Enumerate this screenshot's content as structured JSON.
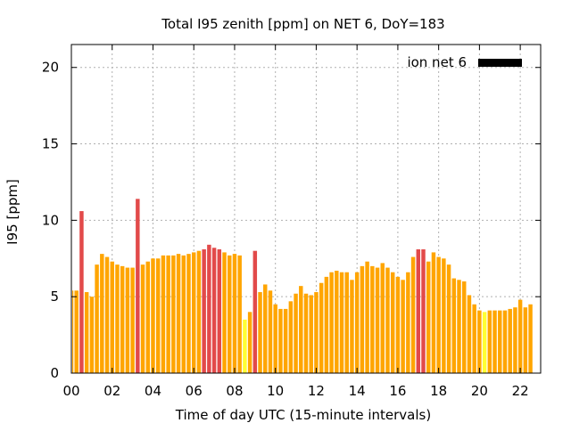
{
  "chart_data": {
    "type": "bar",
    "title": "Total I95 zenith [ppm] on NET 6, DoY=183",
    "xlabel": "Time of day UTC (15-minute intervals)",
    "ylabel": "I95 [ppm]",
    "xlim": [
      0,
      23
    ],
    "ylim": [
      0,
      21.5
    ],
    "x_ticks": [
      "00",
      "02",
      "04",
      "06",
      "08",
      "10",
      "12",
      "14",
      "16",
      "18",
      "20",
      "22"
    ],
    "y_ticks": [
      "0",
      "5",
      "10",
      "15",
      "20"
    ],
    "grid": true,
    "legend_position": "top-right",
    "series": [
      {
        "name": "ion net 6",
        "color": "#000000",
        "x_start": 0,
        "x_step": 0.25,
        "values": [
          5.4,
          5.4,
          10.6,
          5.3,
          5.0,
          7.1,
          7.8,
          7.6,
          7.3,
          7.1,
          7.0,
          6.9,
          6.9,
          11.4,
          7.1,
          7.3,
          7.5,
          7.5,
          7.7,
          7.7,
          7.7,
          7.8,
          7.7,
          7.8,
          7.9,
          8.0,
          8.1,
          8.4,
          8.2,
          8.1,
          7.9,
          7.7,
          7.8,
          7.7,
          3.5,
          4.0,
          8.0,
          5.3,
          5.8,
          5.4,
          4.5,
          4.2,
          4.2,
          4.7,
          5.2,
          5.7,
          5.2,
          5.1,
          5.3,
          5.9,
          6.3,
          6.6,
          6.7,
          6.6,
          6.6,
          6.1,
          6.6,
          7.0,
          7.3,
          7.0,
          6.9,
          7.2,
          6.9,
          6.6,
          6.3,
          6.1,
          6.6,
          7.6,
          8.1,
          8.1,
          7.3,
          7.9,
          7.6,
          7.5,
          7.1,
          6.2,
          6.1,
          6.0,
          5.1,
          4.5,
          4.1,
          4.0,
          4.1,
          4.1,
          4.1,
          4.1,
          4.2,
          4.3,
          4.8,
          4.3,
          4.5
        ],
        "colors": [
          "#ffa500",
          "#ffa500",
          "#e24a4a",
          "#ffa500",
          "#ffa500",
          "#ffa500",
          "#ffa500",
          "#ffa500",
          "#ffa500",
          "#ffa500",
          "#ffa500",
          "#ffa500",
          "#ffa500",
          "#e24a4a",
          "#ffa500",
          "#ffa500",
          "#ffa500",
          "#ffa500",
          "#ffa500",
          "#ffa500",
          "#ffa500",
          "#ffa500",
          "#ffa500",
          "#ffa500",
          "#ffa500",
          "#ffa500",
          "#e24a4a",
          "#e24a4a",
          "#e24a4a",
          "#e24a4a",
          "#ffa500",
          "#ffa500",
          "#ffa500",
          "#ffa500",
          "#ffff33",
          "#ffa500",
          "#e24a4a",
          "#ffa500",
          "#ffa500",
          "#ffa500",
          "#ffa500",
          "#ffa500",
          "#ffa500",
          "#ffa500",
          "#ffa500",
          "#ffa500",
          "#ffa500",
          "#ffa500",
          "#ffa500",
          "#ffa500",
          "#ffa500",
          "#ffa500",
          "#ffa500",
          "#ffa500",
          "#ffa500",
          "#ffa500",
          "#ffa500",
          "#ffa500",
          "#ffa500",
          "#ffa500",
          "#ffa500",
          "#ffa500",
          "#ffa500",
          "#ffa500",
          "#ffa500",
          "#ffa500",
          "#ffa500",
          "#ffa500",
          "#e24a4a",
          "#e24a4a",
          "#ffa500",
          "#ffa500",
          "#ffa500",
          "#ffa500",
          "#ffa500",
          "#ffa500",
          "#ffa500",
          "#ffa500",
          "#ffa500",
          "#ffa500",
          "#ffa500",
          "#ffff33",
          "#ffa500",
          "#ffa500",
          "#ffa500",
          "#ffa500",
          "#ffa500",
          "#ffa500",
          "#ffa500",
          "#ffa500",
          "#ffa500"
        ]
      }
    ]
  }
}
